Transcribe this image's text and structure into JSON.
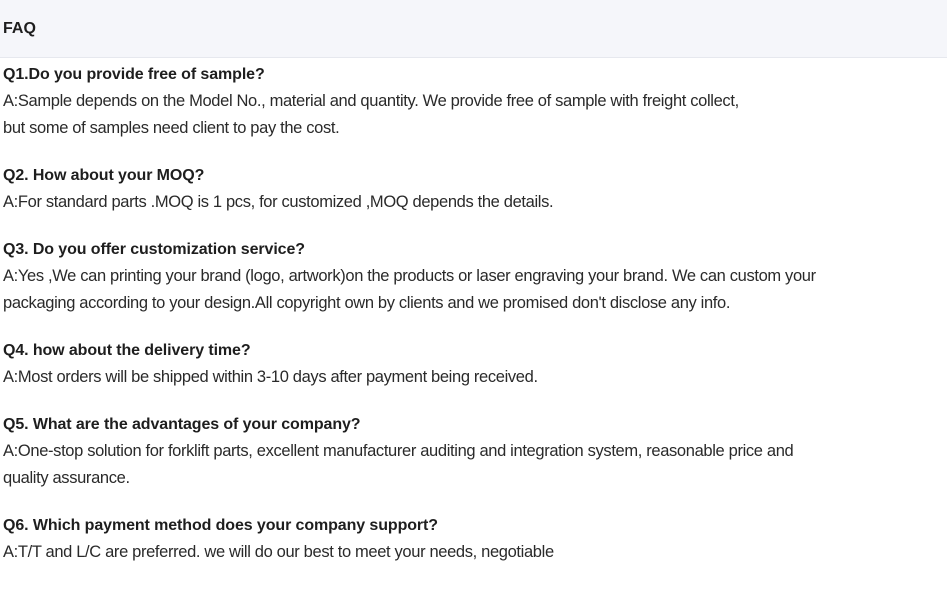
{
  "header": {
    "title": "FAQ"
  },
  "faq": [
    {
      "question": "Q1.Do you provide free of sample?",
      "answer_lines": [
        "A:Sample depends on the Model No., material and quantity. We provide free of sample with freight collect,",
        "but some of samples need client to pay the cost."
      ]
    },
    {
      "question": "Q2. How about your MOQ?",
      "answer_lines": [
        "A:For standard parts .MOQ is 1 pcs, for customized ,MOQ depends the details."
      ]
    },
    {
      "question": "Q3. Do you offer customization service?",
      "answer_lines": [
        "A:Yes ,We can printing your brand (logo, artwork)on the products or laser engraving your brand. We can custom your",
        "packaging according to your design.All copyright own by clients and we promised don't disclose any info."
      ]
    },
    {
      "question": "Q4. how about the delivery time?",
      "answer_lines": [
        "A:Most orders will be shipped within 3-10 days after payment being received."
      ]
    },
    {
      "question": "Q5. What are the advantages of your company?",
      "answer_lines": [
        "A:One-stop solution for forklift parts, excellent manufacturer auditing and integration system, reasonable price and",
        "quality assurance."
      ]
    },
    {
      "question": "Q6. Which payment method does your company support?",
      "answer_lines": [
        "A:T/T and L/C are preferred. we will do our best to meet your needs, negotiable"
      ]
    }
  ]
}
